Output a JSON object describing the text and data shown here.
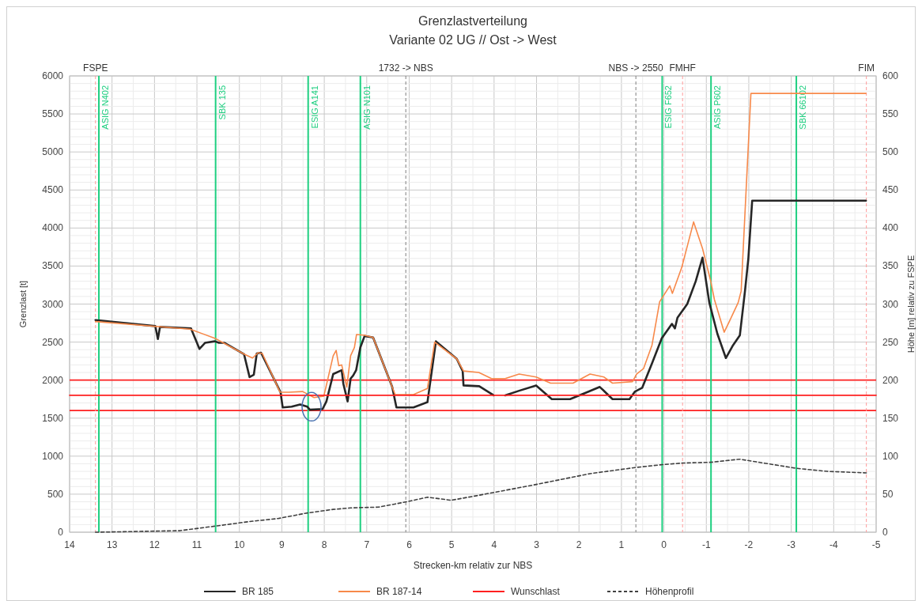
{
  "chart_data": {
    "type": "line",
    "title": "Grenzlastverteilung",
    "subtitle": "Variante 02 UG // Ost -> West",
    "xlabel": "Strecken-km relativ zur NBS",
    "ylabel": "Grenzlast [t]",
    "y2label": "Höhe [m] relativ zu FSPE",
    "xlim": [
      14,
      -5
    ],
    "xticks": [
      14,
      13,
      12,
      11,
      10,
      9,
      8,
      7,
      6,
      5,
      4,
      3,
      2,
      1,
      0,
      -1,
      -2,
      -3,
      -4,
      -5
    ],
    "ylim": [
      0,
      6000
    ],
    "yticks": [
      0,
      500,
      1000,
      1500,
      2000,
      2500,
      3000,
      3500,
      4000,
      4500,
      5000,
      5500,
      6000
    ],
    "y2lim": [
      0,
      600
    ],
    "y2ticks": [
      0,
      50,
      100,
      150,
      200,
      250,
      300,
      350,
      400,
      450,
      500,
      550,
      600
    ],
    "grid": true,
    "legend": "bottom",
    "series": [
      {
        "name": "BR 185",
        "color": "#262626",
        "x": [
          13.39,
          11.98,
          11.92,
          11.87,
          11.14,
          10.94,
          10.81,
          10.58,
          10.48,
          10.35,
          9.89,
          9.76,
          9.66,
          9.59,
          9.49,
          9.03,
          8.98,
          8.77,
          8.57,
          8.4,
          8.34,
          8.04,
          7.95,
          7.79,
          7.59,
          7.55,
          7.45,
          7.38,
          7.32,
          7.25,
          7.15,
          7.05,
          6.85,
          6.4,
          6.3,
          5.9,
          5.57,
          5.37,
          4.88,
          4.74,
          4.72,
          4.35,
          4.01,
          3.9,
          3.74,
          3.41,
          3.01,
          2.64,
          2.21,
          1.81,
          1.51,
          1.21,
          0.81,
          0.68,
          0.51,
          0.28,
          0.05,
          -0.19,
          -0.26,
          -0.32,
          -0.55,
          -0.75,
          -0.91,
          -1.07,
          -1.26,
          -1.46,
          -1.63,
          -1.79,
          -1.91,
          -1.99,
          -2.08,
          -4.76
        ],
        "values": [
          2790,
          2710,
          2540,
          2700,
          2680,
          2410,
          2490,
          2510,
          2490,
          2490,
          2340,
          2040,
          2070,
          2350,
          2360,
          1840,
          1640,
          1650,
          1680,
          1650,
          1610,
          1620,
          1720,
          2080,
          2130,
          1950,
          1720,
          2020,
          2060,
          2130,
          2430,
          2580,
          2560,
          1910,
          1640,
          1640,
          1710,
          2510,
          2280,
          2120,
          1930,
          1920,
          1800,
          null,
          1800,
          1860,
          1930,
          1750,
          1750,
          1840,
          1910,
          1750,
          1750,
          1850,
          1900,
          2220,
          2550,
          2740,
          2680,
          2820,
          3000,
          3300,
          3610,
          3020,
          2610,
          2290,
          2460,
          2590,
          3170,
          3600,
          4360,
          4360
        ]
      },
      {
        "name": "BR 187-14",
        "color": "#f7894a",
        "x": [
          13.39,
          11.16,
          10.58,
          9.88,
          9.69,
          9.56,
          9.46,
          9.04,
          8.84,
          8.51,
          8.24,
          8.01,
          7.79,
          7.72,
          7.66,
          7.59,
          7.47,
          7.38,
          7.29,
          7.24,
          7.05,
          6.85,
          6.33,
          5.9,
          5.57,
          5.4,
          4.88,
          4.72,
          4.36,
          4.06,
          3.74,
          3.41,
          3.01,
          2.67,
          2.14,
          1.74,
          1.41,
          1.21,
          0.74,
          0.64,
          0.48,
          0.28,
          0.1,
          -0.14,
          -0.2,
          -0.42,
          -0.7,
          -0.91,
          -1.1,
          -1.19,
          -1.42,
          -1.55,
          -1.75,
          -1.82,
          -1.93,
          -2.05,
          -4.76
        ],
        "values": [
          2770,
          2670,
          2550,
          2340,
          2290,
          2360,
          2350,
          1840,
          1840,
          1850,
          1770,
          1790,
          2320,
          2390,
          2190,
          2200,
          1910,
          2320,
          2430,
          2600,
          2590,
          2560,
          1810,
          1810,
          1890,
          2500,
          2280,
          2120,
          2100,
          2020,
          2020,
          2080,
          2040,
          1960,
          1960,
          2080,
          2040,
          1960,
          1980,
          2080,
          2150,
          2460,
          3030,
          3240,
          3140,
          3480,
          4080,
          3730,
          3310,
          3060,
          2630,
          2780,
          3020,
          3170,
          4420,
          5770,
          5770
        ]
      },
      {
        "name": "Wunschlast",
        "color": "#ff2020",
        "x": [
          14,
          -5
        ],
        "values": [
          1800,
          1800
        ]
      },
      {
        "name": "Höhenprofil",
        "color": "#404040",
        "axis": "y2",
        "line_style": "dashed",
        "x": [
          13.39,
          12.39,
          11.4,
          10.57,
          9.76,
          9.09,
          8.43,
          7.79,
          7.38,
          6.72,
          6.06,
          5.57,
          5.01,
          4.41,
          3.08,
          1.74,
          0.68,
          0.01,
          -0.46,
          -1.12,
          -1.79,
          -3.12,
          -3.85,
          -4.77
        ],
        "values": [
          0,
          1,
          2,
          8,
          14,
          18,
          25,
          30,
          32,
          33,
          40,
          46,
          42,
          48,
          62,
          77,
          85,
          89,
          91,
          92,
          96,
          84,
          80,
          78
        ]
      }
    ],
    "ref_lines": [
      {
        "axis": "y",
        "value": 2000,
        "label": null,
        "color": "#ff2020",
        "line_style": "solid"
      },
      {
        "axis": "y",
        "value": 1600,
        "label": null,
        "color": "#ff2020",
        "line_style": "solid"
      },
      {
        "axis": "x",
        "value": 13.39,
        "label": "FSPE",
        "color": "#ff9a9a",
        "line_style": "dashed"
      },
      {
        "axis": "x",
        "value": 13.31,
        "label": "ASIG N402",
        "color": "#1ecf80",
        "line_style": "solid"
      },
      {
        "axis": "x",
        "value": 10.56,
        "label": "SBK 135",
        "color": "#1ecf80",
        "line_style": "solid"
      },
      {
        "axis": "x",
        "value": 8.38,
        "label": "ESIG A141",
        "color": "#1ecf80",
        "line_style": "solid"
      },
      {
        "axis": "x",
        "value": 7.15,
        "label": "ASIG N101",
        "color": "#1ecf80",
        "line_style": "solid"
      },
      {
        "axis": "x",
        "value": 6.08,
        "label": "1732 -> NBS",
        "color": "#7f7f7f",
        "line_style": "dashed"
      },
      {
        "axis": "x",
        "value": 0.66,
        "label": "NBS -> 2550",
        "color": "#7f7f7f",
        "line_style": "dashed"
      },
      {
        "axis": "x",
        "value": 0.04,
        "label": "ESIG F652",
        "color": "#1ecf80",
        "line_style": "solid"
      },
      {
        "axis": "x",
        "value": -0.44,
        "label": "FMHF",
        "color": "#ff9a9a",
        "line_style": "dashed"
      },
      {
        "axis": "x",
        "value": -1.11,
        "label": "ASIG P602",
        "color": "#1ecf80",
        "line_style": "solid"
      },
      {
        "axis": "x",
        "value": -3.12,
        "label": "SBK 66102",
        "color": "#1ecf80",
        "line_style": "solid"
      },
      {
        "axis": "x",
        "value": -4.77,
        "label": "FIM",
        "color": "#ff9a9a",
        "line_style": "dashed"
      }
    ]
  }
}
